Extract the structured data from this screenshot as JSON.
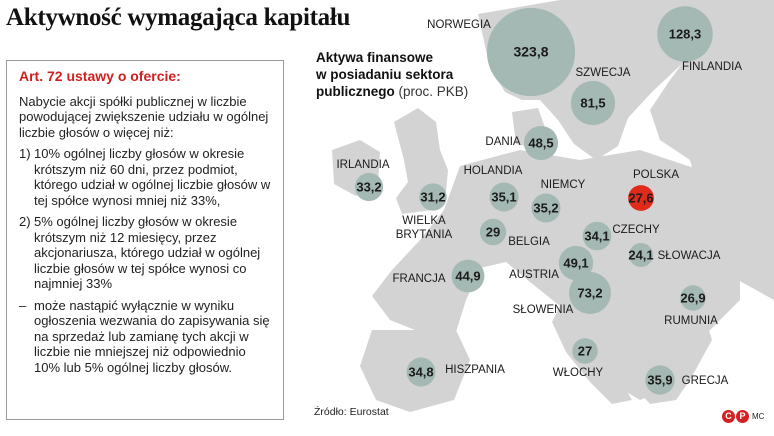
{
  "title": "Aktywność wymagająca kapitału",
  "info_box": {
    "heading": "Art. 72 ustawy o ofercie:",
    "intro": "Nabycie akcji spółki publicznej w liczbie powodującej zwiększenie udziału w ogólnej liczbie głosów o więcej niż:",
    "items": [
      {
        "num": "1)",
        "text": "10% ogólnej liczby głosów w okresie krótszym niż 60 dni, przez podmiot, którego udział w ogólnej liczbie głosów w tej spółce wynosi mniej niż 33%,"
      },
      {
        "num": "2)",
        "text": "5% ogólnej liczby głosów w okresie krótszym niż 12 miesięcy, przez akcjonariusza, którego udział w ogólnej liczbie głosów w tej spółce wynosi co najmniej 33%"
      },
      {
        "num": "–",
        "text": "może nastąpić wyłącznie w wyniku ogłoszenia wezwania do zapisywania się na sprzedaż lub zamianę tych akcji w liczbie nie mniejszej niż odpowiednio 10% lub 5% ogólnej liczby głosów."
      }
    ]
  },
  "legend": {
    "line1": "Aktywa finansowe",
    "line2": "w posiadaniu sektora",
    "line3": "publicznego",
    "unit": "(proc. PKB)"
  },
  "source": "Źródło: Eurostat",
  "logo": {
    "c": "C",
    "p": "P",
    "mc": "MC"
  },
  "colors": {
    "bubble": "#a5b9b4",
    "highlight": "#e02a1c",
    "land": "#d3d3d3",
    "sea": "#ffffff",
    "heading": "#d01f1f"
  },
  "chart_data": {
    "type": "bubble-map",
    "title": "Aktywa finansowe w posiadaniu sektora publicznego (proc. PKB)",
    "highlight": "Polska",
    "points": [
      {
        "country": "NORWEGIA",
        "value": 323.8,
        "value_label": "323,8"
      },
      {
        "country": "FINLANDIA",
        "value": 128.3,
        "value_label": "128,3"
      },
      {
        "country": "SZWECJA",
        "value": 81.5,
        "value_label": "81,5"
      },
      {
        "country": "DANIA",
        "value": 48.5,
        "value_label": "48,5"
      },
      {
        "country": "IRLANDIA",
        "value": 33.2,
        "value_label": "33,2"
      },
      {
        "country": "WIELKA BRYTANIA",
        "value": 31.2,
        "value_label": "31,2"
      },
      {
        "country": "HOLANDIA",
        "value": 35.1,
        "value_label": "35,1"
      },
      {
        "country": "NIEMCY",
        "value": 35.2,
        "value_label": "35,2"
      },
      {
        "country": "POLSKA",
        "value": 27.6,
        "value_label": "27,6"
      },
      {
        "country": "BELGIA",
        "value": 29,
        "value_label": "29"
      },
      {
        "country": "CZECHY",
        "value": 34.1,
        "value_label": "34,1"
      },
      {
        "country": "SŁOWACJA",
        "value": 24.1,
        "value_label": "24,1"
      },
      {
        "country": "AUSTRIA",
        "value": 49.1,
        "value_label": "49,1"
      },
      {
        "country": "FRANCJA",
        "value": 44.9,
        "value_label": "44,9"
      },
      {
        "country": "SŁOWENIA",
        "value": 73.2,
        "value_label": "73,2"
      },
      {
        "country": "RUMUNIA",
        "value": 26.9,
        "value_label": "26,9"
      },
      {
        "country": "WŁOCHY",
        "value": 27,
        "value_label": "27"
      },
      {
        "country": "HISZPANIA",
        "value": 34.8,
        "value_label": "34,8"
      },
      {
        "country": "GRECJA",
        "value": 35.9,
        "value_label": "35,9"
      }
    ]
  }
}
